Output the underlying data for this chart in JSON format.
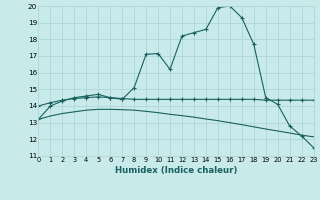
{
  "xlabel": "Humidex (Indice chaleur)",
  "bg_color": "#c8eaea",
  "grid_color": "#b0d8d8",
  "line_color": "#1a6060",
  "xlim": [
    0,
    23
  ],
  "ylim": [
    11,
    20
  ],
  "xticks": [
    0,
    1,
    2,
    3,
    4,
    5,
    6,
    7,
    8,
    9,
    10,
    11,
    12,
    13,
    14,
    15,
    16,
    17,
    18,
    19,
    20,
    21,
    22,
    23
  ],
  "yticks": [
    11,
    12,
    13,
    14,
    15,
    16,
    17,
    18,
    19,
    20
  ],
  "curve1_x": [
    0,
    1,
    2,
    3,
    4,
    5,
    6,
    7,
    8,
    9,
    10,
    11,
    12,
    13,
    14,
    15,
    16,
    17,
    18,
    19,
    20,
    21,
    22,
    23
  ],
  "curve1_y": [
    13.2,
    14.0,
    14.3,
    14.5,
    14.6,
    14.7,
    14.5,
    14.4,
    15.1,
    17.1,
    17.15,
    16.2,
    18.2,
    18.4,
    18.6,
    19.9,
    20.0,
    19.3,
    17.7,
    14.5,
    14.1,
    12.8,
    12.2,
    11.5
  ],
  "curve2_x": [
    0,
    1,
    2,
    3,
    4,
    5,
    6,
    7,
    8,
    9,
    10,
    11,
    12,
    13,
    14,
    15,
    16,
    17,
    18,
    19,
    20,
    21,
    22,
    23
  ],
  "curve2_y": [
    14.0,
    14.2,
    14.35,
    14.45,
    14.5,
    14.55,
    14.5,
    14.45,
    14.4,
    14.4,
    14.4,
    14.4,
    14.4,
    14.4,
    14.4,
    14.4,
    14.4,
    14.4,
    14.4,
    14.35,
    14.35,
    14.35,
    14.35,
    14.35
  ],
  "curve3_x": [
    0,
    1,
    2,
    3,
    4,
    5,
    6,
    7,
    8,
    9,
    10,
    11,
    12,
    13,
    14,
    15,
    16,
    17,
    18,
    19,
    20,
    21,
    22,
    23
  ],
  "curve3_y": [
    13.2,
    13.4,
    13.55,
    13.65,
    13.75,
    13.8,
    13.8,
    13.78,
    13.75,
    13.68,
    13.6,
    13.5,
    13.42,
    13.33,
    13.22,
    13.12,
    13.0,
    12.88,
    12.75,
    12.62,
    12.5,
    12.38,
    12.25,
    12.15
  ]
}
